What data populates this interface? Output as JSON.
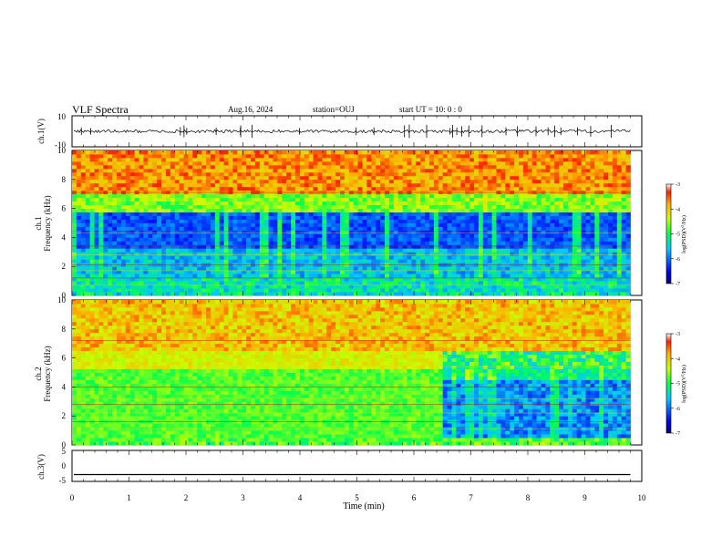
{
  "header": {
    "title": "VLF Spectra",
    "date": "Aug.16, 2024",
    "station": "station=OUJ",
    "start": "start  UT  =   10: 0  : 0"
  },
  "chart_data": [
    {
      "type": "line",
      "panel": "ch1-waveform",
      "ylabel": "ch.1(V)",
      "ylim": [
        -10,
        10
      ],
      "yticks": [
        "10",
        "-10"
      ],
      "xlim": [
        0,
        10
      ],
      "baseline": 0,
      "description_values": {
        "amplitude_typical": 1.0,
        "amplitude_spike": 4.0
      }
    },
    {
      "type": "heatmap",
      "panel": "ch1-spectrogram",
      "ylabel": "ch.1\nFrequency  (kHz)",
      "ylabel_lines": [
        "ch.1",
        "Frequency  (kHz)"
      ],
      "ylim": [
        0,
        10
      ],
      "yticks": [
        "0",
        "2",
        "4",
        "6",
        "8",
        "10"
      ],
      "xlim": [
        0,
        9.8
      ],
      "colorbar": {
        "label": "log(PSD)(V²/Hz)",
        "label_text": "log(PSD)(V",
        "label_sup": "2",
        "label_tail": "/Hz)",
        "ticks": [
          "-3",
          "-4",
          "-5",
          "-6",
          "-7"
        ],
        "range": [
          -7,
          -3
        ]
      }
    },
    {
      "type": "heatmap",
      "panel": "ch2-spectrogram",
      "ylabel_lines": [
        "ch.2",
        "Frequency  (kHz)"
      ],
      "ylim": [
        0,
        10
      ],
      "yticks": [
        "0",
        "2",
        "4",
        "6",
        "8",
        "10"
      ],
      "xlim": [
        0,
        9.8
      ],
      "regime_change_time": 6.45,
      "colorbar": {
        "label_text": "log(PSD)(V",
        "label_sup": "2",
        "label_tail": "/Hz)",
        "ticks": [
          "-3",
          "-4",
          "-5",
          "-6",
          "-7"
        ],
        "range": [
          -7,
          -3
        ]
      }
    },
    {
      "type": "line",
      "panel": "ch3-waveform",
      "ylabel": "ch.3(V)",
      "ylim": [
        -5,
        5
      ],
      "yticks": [
        "5",
        "0",
        "-5"
      ],
      "xlim": [
        0,
        10
      ],
      "values": [
        -2.8,
        -2.8
      ]
    }
  ],
  "xaxis": {
    "label": "Time  (min)",
    "ticks": [
      "0",
      "1",
      "2",
      "3",
      "4",
      "5",
      "6",
      "7",
      "8",
      "9",
      "10"
    ]
  }
}
